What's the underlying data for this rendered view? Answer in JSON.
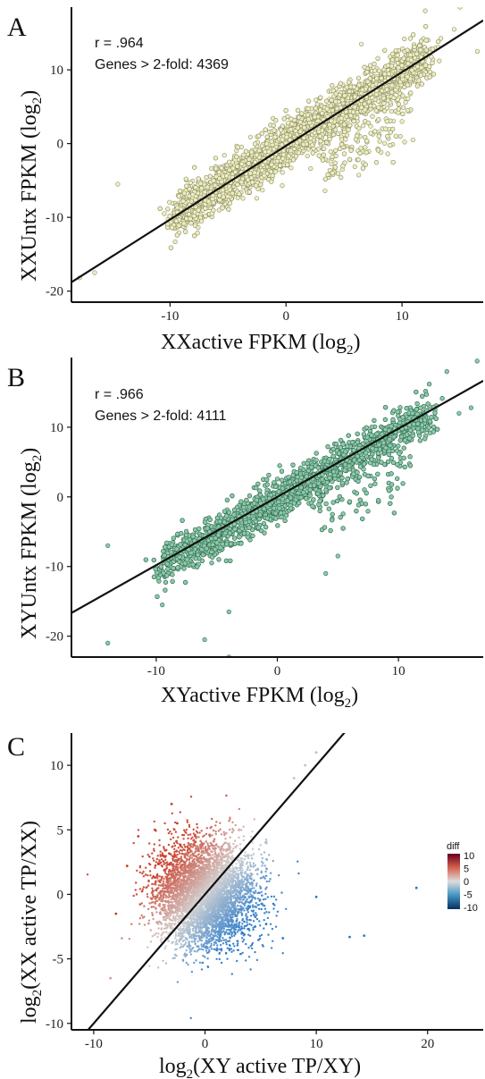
{
  "chart_data": [
    {
      "type": "scatter",
      "panel": "A",
      "xlabel": "XXactive FPKM (log",
      "xlabel_sub": "2",
      "xlabel_tail": ")",
      "ylabel": "XXUntx FPKM (log",
      "ylabel_sub": "2",
      "ylabel_tail": ")",
      "xlim": [
        -18.5,
        17
      ],
      "ylim": [
        -21.5,
        18.5
      ],
      "xticks": [
        -10,
        0,
        10
      ],
      "yticks": [
        -20,
        -10,
        0,
        10
      ],
      "annotations": [
        "r = .964",
        "Genes > 2-fold: 4369"
      ],
      "fit_line": {
        "slope": 1.0,
        "intercept": -0.3
      },
      "point_color": "#eeeec4",
      "point_edge": "#8f8f64",
      "cloud": {
        "n": 4369,
        "x_min": -9.5,
        "x_max": 12,
        "slope": 1.0,
        "intercept": -0.3,
        "spread": 1.8
      },
      "outliers": [
        [
          -14.5,
          -5.5
        ],
        [
          -16.5,
          -17.5
        ],
        [
          -17.8,
          -18.2
        ],
        [
          6.5,
          13.5
        ],
        [
          15,
          18.5
        ],
        [
          12,
          18
        ],
        [
          16.5,
          12.5
        ],
        [
          -10.5,
          -9.5
        ],
        [
          14.5,
          15.5
        ],
        [
          8,
          1
        ],
        [
          10,
          3
        ]
      ]
    },
    {
      "type": "scatter",
      "panel": "B",
      "xlabel": "XYactive FPKM (log",
      "xlabel_sub": "2",
      "xlabel_tail": ")",
      "ylabel": "XYUntx FPKM (log",
      "ylabel_sub": "2",
      "ylabel_tail": ")",
      "xlim": [
        -17,
        17
      ],
      "ylim": [
        -23,
        20
      ],
      "xticks": [
        -10,
        0,
        10
      ],
      "yticks": [
        -20,
        -10,
        0,
        10
      ],
      "annotations": [
        "r = .966",
        "Genes > 2-fold: 4111"
      ],
      "fit_line": {
        "slope": 0.98,
        "intercept": 0
      },
      "point_color": "#8fc9a9",
      "point_edge": "#2e6b52",
      "cloud": {
        "n": 4111,
        "x_min": -9.5,
        "x_max": 12.5,
        "slope": 1.0,
        "intercept": -0.5,
        "spread": 1.8
      },
      "outliers": [
        [
          -14,
          -7
        ],
        [
          -9.5,
          -15.5
        ],
        [
          -14,
          -21
        ],
        [
          -6,
          -20.5
        ],
        [
          -4,
          -23
        ],
        [
          -4,
          -16.5
        ],
        [
          16.5,
          19.5
        ],
        [
          14,
          18
        ],
        [
          15,
          12
        ],
        [
          16,
          12.8
        ],
        [
          4,
          -11
        ],
        [
          5,
          -8.5
        ]
      ]
    },
    {
      "type": "scatter",
      "panel": "C",
      "xlabel_pre": "log",
      "xlabel_sub": "2",
      "xlabel": "(XY active TP/XY)",
      "ylabel_pre": "log",
      "ylabel_sub": "2",
      "ylabel": "(XX active TP/XX)",
      "xlim": [
        -12,
        25
      ],
      "ylim": [
        -10.5,
        12.5
      ],
      "xticks": [
        -10,
        0,
        10,
        20
      ],
      "yticks": [
        -10,
        -5,
        0,
        5,
        10
      ],
      "fit_line": {
        "slope": 1.0,
        "intercept": 0
      },
      "legend": {
        "title": "diff",
        "ticks": [
          10,
          5,
          0,
          -5,
          -10
        ],
        "colors": [
          "#b2182b",
          "#ef8a62",
          "#d9d9d9",
          "#67a9cf",
          "#053061"
        ]
      },
      "cloud": {
        "n": 5000,
        "center": [
          0,
          0
        ],
        "spread_x": 2.2,
        "spread_y": 2.0
      },
      "outliers": [
        [
          19,
          0.5
        ],
        [
          10,
          -0.2
        ],
        [
          13,
          -3.3
        ],
        [
          14.3,
          -3.2
        ],
        [
          -8,
          -1.5
        ],
        [
          -7,
          2.2
        ],
        [
          -6,
          4.5
        ],
        [
          -3,
          7
        ],
        [
          -2.5,
          5.5
        ],
        [
          -4.5,
          5
        ],
        [
          4.5,
          -2.5
        ],
        [
          5.5,
          -2.3
        ],
        [
          7,
          -3.4
        ],
        [
          8,
          9
        ],
        [
          9,
          10
        ],
        [
          10,
          11
        ],
        [
          -8.5,
          -6.5
        ]
      ]
    }
  ]
}
